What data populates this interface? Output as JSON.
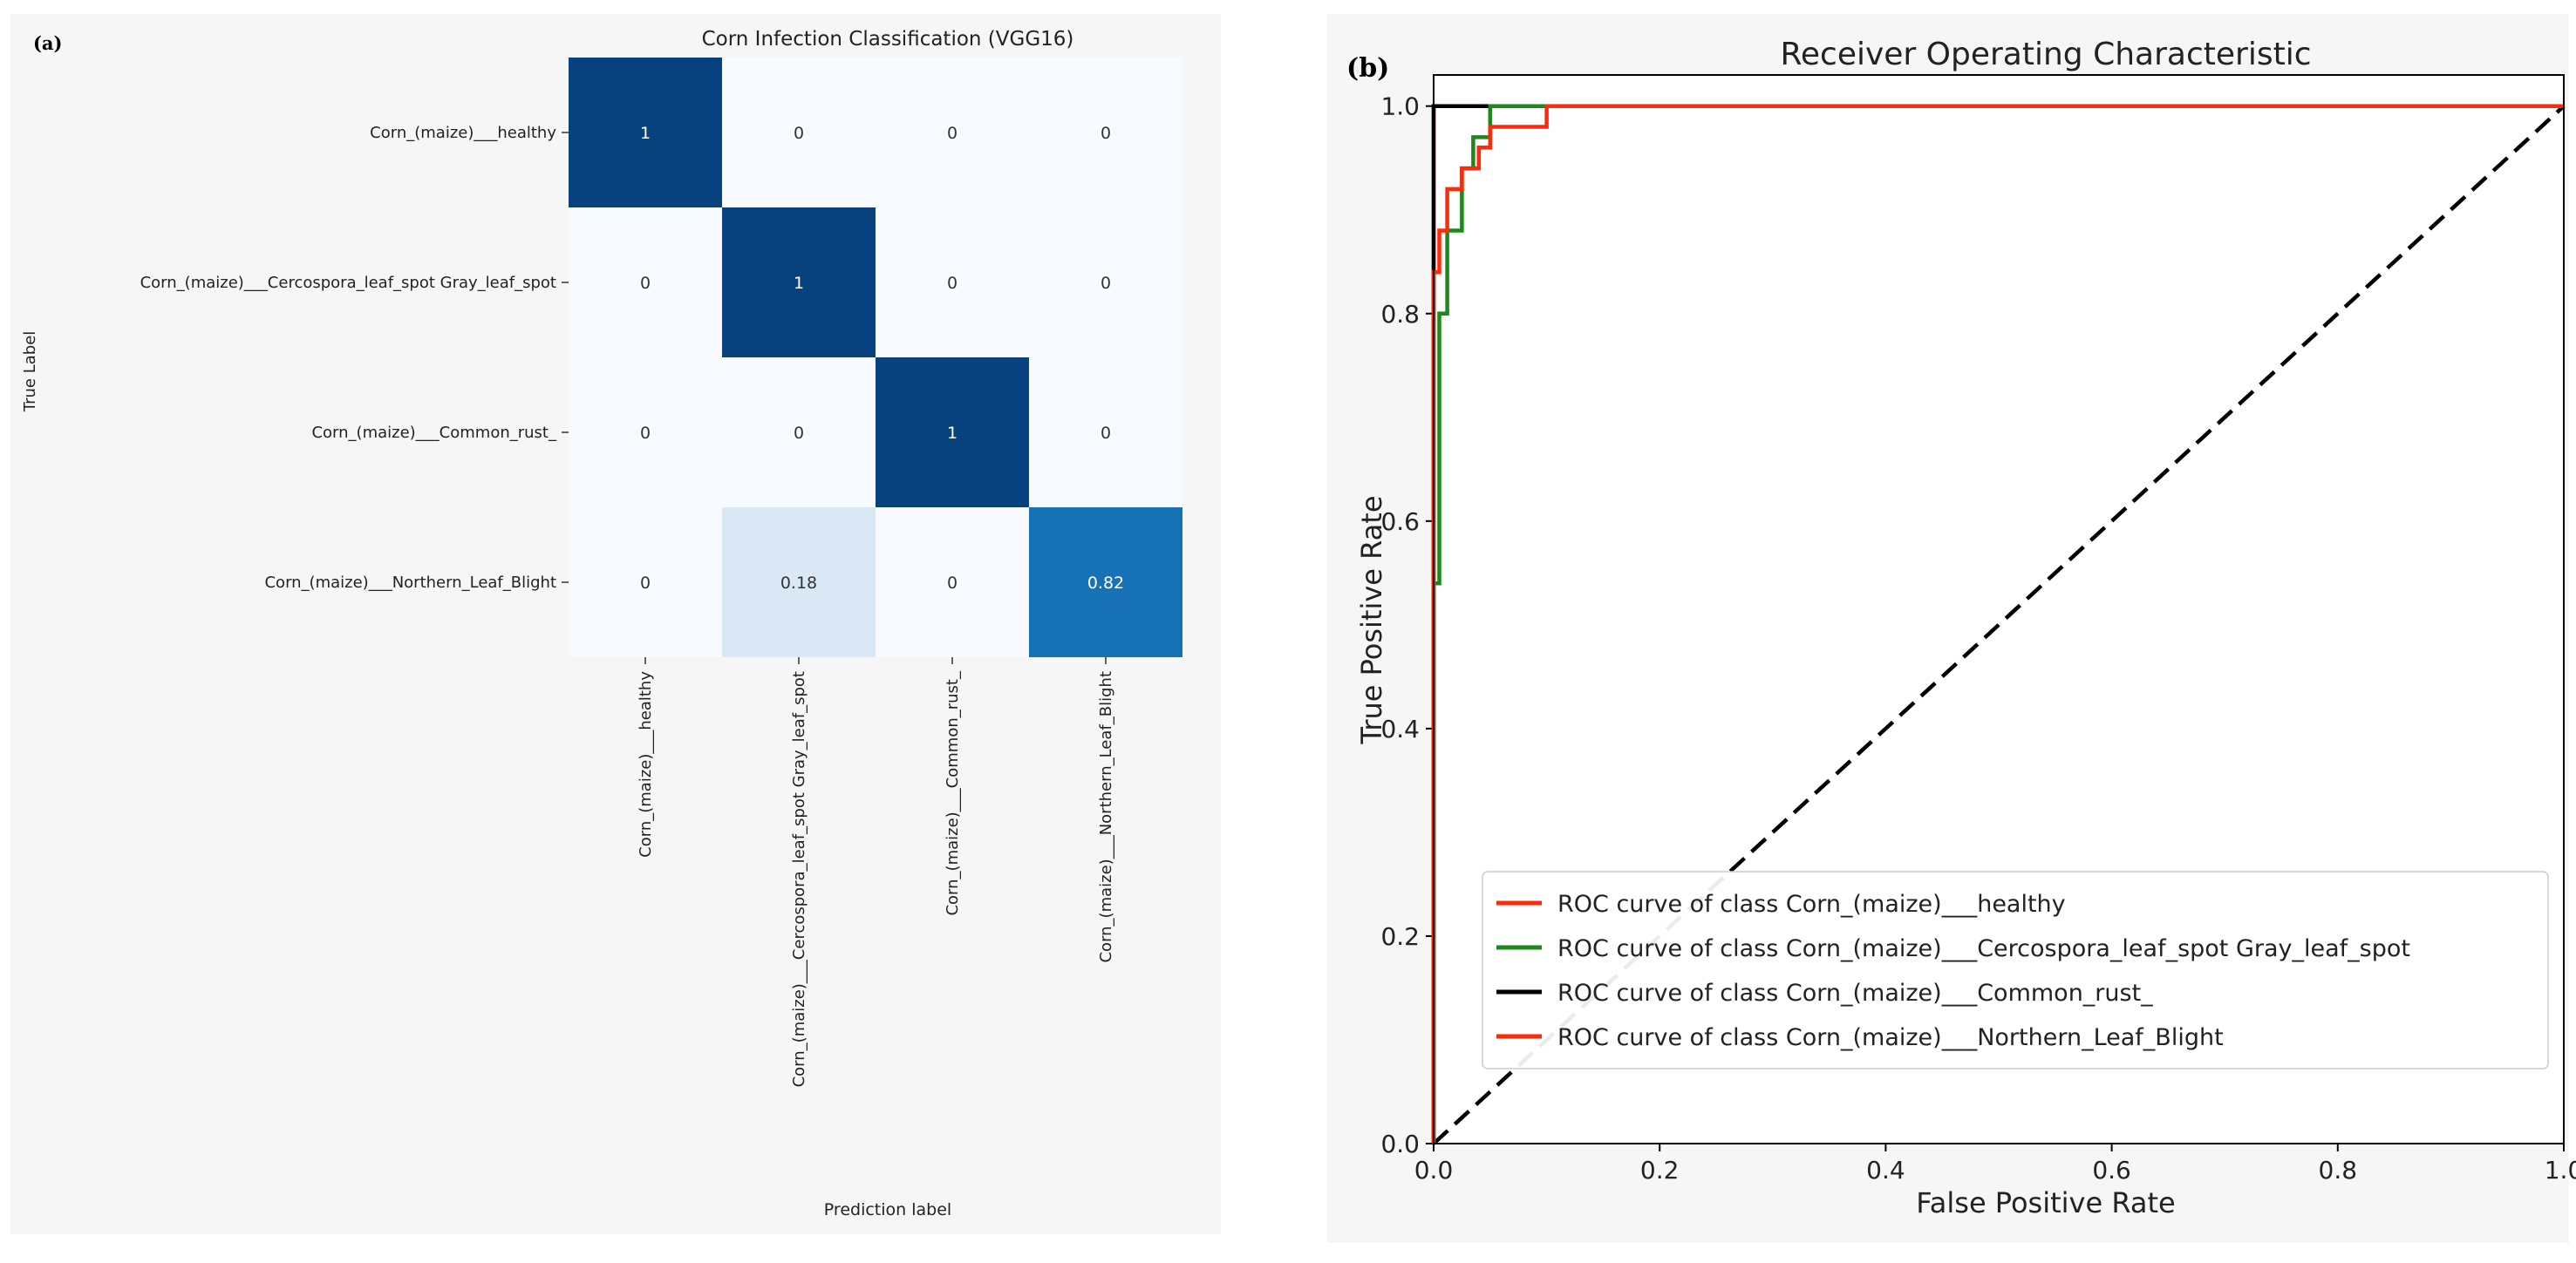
{
  "panel_a": {
    "letter": "(a)",
    "chart_data": {
      "type": "heatmap",
      "title": "Corn Infection Classification (VGG16)",
      "xlabel": "Prediction label",
      "ylabel": "True Label",
      "rows": [
        "Corn_(maize)___healthy",
        "Corn_(maize)___Cercospora_leaf_spot Gray_leaf_spot",
        "Corn_(maize)___Common_rust_",
        "Corn_(maize)___Northern_Leaf_Blight"
      ],
      "columns": [
        "Corn_(maize)___healthy",
        "Corn_(maize)___Cercospora_leaf_spot Gray_leaf_spot",
        "Corn_(maize)___Common_rust_",
        "Corn_(maize)___Northern_Leaf_Blight"
      ],
      "values": [
        [
          1,
          0,
          0,
          0
        ],
        [
          0,
          1,
          0,
          0
        ],
        [
          0,
          0,
          1,
          0
        ],
        [
          0,
          0.18,
          0,
          0.82
        ]
      ],
      "labels": [
        [
          "1",
          "0",
          "0",
          "0"
        ],
        [
          "0",
          "1",
          "0",
          "0"
        ],
        [
          "0",
          "0",
          "1",
          "0"
        ],
        [
          "0",
          "0.18",
          "0",
          "0.82"
        ]
      ],
      "colormap": "Blues",
      "vmin": 0,
      "vmax": 1
    }
  },
  "panel_b": {
    "letter": "(b)",
    "chart_data": {
      "type": "line",
      "title": "Receiver Operating Characteristic",
      "xlabel": "False Positive Rate",
      "ylabel": "True Positive Rate",
      "xlim": [
        0,
        1
      ],
      "ylim": [
        0,
        1.0
      ],
      "xticks": [
        "0.0",
        "0.2",
        "0.4",
        "0.6",
        "0.8",
        "1.0"
      ],
      "yticks": [
        "0.0",
        "0.2",
        "0.4",
        "0.6",
        "0.8",
        "1.0"
      ],
      "legend_position": "lower-right",
      "series": [
        {
          "name": "ROC curve of class Corn_(maize)___healthy",
          "color": "#ff2a0a",
          "x": [
            0,
            0,
            1.0
          ],
          "y": [
            0,
            1.0,
            1.0
          ]
        },
        {
          "name": "ROC curve of class Corn_(maize)___Cercospora_leaf_spot Gray_leaf_spot",
          "color": "#1b8a1b",
          "x": [
            0,
            0,
            0.005,
            0.005,
            0.012,
            0.012,
            0.025,
            0.025,
            0.035,
            0.035,
            0.05,
            0.05,
            1.0
          ],
          "y": [
            0,
            0.54,
            0.54,
            0.8,
            0.8,
            0.88,
            0.88,
            0.94,
            0.94,
            0.97,
            0.97,
            1.0,
            1.0
          ]
        },
        {
          "name": "ROC curve of class Corn_(maize)___Common_rust_",
          "color": "#000000",
          "x": [
            0,
            0,
            0.1,
            0.1,
            1.0
          ],
          "y": [
            0,
            1.0,
            1.0,
            1.0,
            1.0
          ]
        },
        {
          "name": "ROC curve of class Corn_(maize)___Northern_Leaf_Blight",
          "color": "#ff2a0a",
          "x": [
            0,
            0,
            0.005,
            0.005,
            0.012,
            0.012,
            0.025,
            0.025,
            0.04,
            0.04,
            0.05,
            0.05,
            0.1,
            0.1,
            1.0
          ],
          "y": [
            0,
            0.84,
            0.84,
            0.88,
            0.88,
            0.92,
            0.92,
            0.94,
            0.94,
            0.96,
            0.96,
            0.98,
            0.98,
            1.0,
            1.0
          ]
        }
      ],
      "diagonal": {
        "x": [
          0,
          1
        ],
        "y": [
          0,
          1
        ],
        "style": "dashed",
        "color": "#000000"
      }
    }
  }
}
